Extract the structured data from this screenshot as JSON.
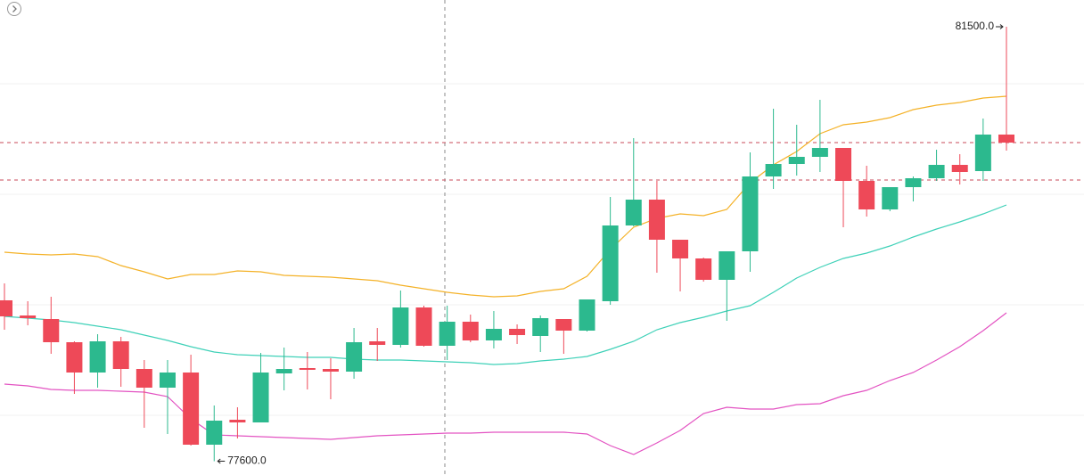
{
  "chart_data": {
    "type": "candlestick",
    "ylim": [
      77476,
      81740
    ],
    "up_color": "#2cb98e",
    "down_color": "#ee4958",
    "open": [
      79044,
      78908,
      78876,
      78668,
      78396,
      78676,
      78428,
      78260,
      78396,
      77748,
      77972,
      77948,
      78388,
      78436,
      78428,
      78404,
      78676,
      78644,
      78980,
      78636,
      78852,
      78684,
      78788,
      78724,
      78876,
      78772,
      79036,
      79716,
      79948,
      79588,
      79420,
      79228,
      79484,
      80156,
      80268,
      80332,
      80412,
      80116,
      79860,
      80060,
      80140,
      80260,
      80204,
      80532
    ],
    "high": [
      79196,
      79036,
      79076,
      78676,
      78740,
      78716,
      78508,
      78508,
      78556,
      78100,
      78084,
      78572,
      78620,
      78580,
      78524,
      78796,
      78796,
      79132,
      78996,
      78996,
      78916,
      78948,
      78828,
      78908,
      78876,
      79052,
      79972,
      80500,
      80116,
      79588,
      79428,
      79484,
      80372,
      80764,
      80620,
      80844,
      80412,
      80252,
      80060,
      80156,
      80396,
      80356,
      80676,
      81500
    ],
    "low": [
      78780,
      78820,
      78564,
      78204,
      78260,
      78268,
      77900,
      77844,
      77740,
      77600,
      77804,
      77948,
      78236,
      78244,
      78156,
      78340,
      78500,
      78620,
      78628,
      78508,
      78668,
      78612,
      78652,
      78580,
      78564,
      78764,
      79004,
      79708,
      79292,
      79124,
      79212,
      78860,
      79300,
      80044,
      80164,
      80196,
      79700,
      79796,
      79844,
      79932,
      80116,
      80084,
      80116,
      80388
    ],
    "close": [
      78900,
      78884,
      78668,
      78396,
      78676,
      78428,
      78260,
      78396,
      77748,
      77964,
      77948,
      78396,
      78428,
      78420,
      78404,
      78668,
      78644,
      78980,
      78636,
      78852,
      78684,
      78788,
      78732,
      78884,
      78772,
      79052,
      79716,
      79948,
      79588,
      79420,
      79228,
      79484,
      80156,
      80268,
      80332,
      80412,
      80116,
      79860,
      80060,
      80140,
      80260,
      80196,
      80532,
      80460
    ],
    "bands": {
      "upper": {
        "color": "#f4b228",
        "values": [
          79476,
          79460,
          79452,
          79460,
          79436,
          79356,
          79300,
          79236,
          79276,
          79276,
          79308,
          79300,
          79268,
          79260,
          79252,
          79236,
          79220,
          79180,
          79148,
          79116,
          79092,
          79076,
          79084,
          79124,
          79148,
          79260,
          79500,
          79700,
          79780,
          79820,
          79804,
          79860,
          80100,
          80260,
          80380,
          80540,
          80620,
          80644,
          80684,
          80756,
          80796,
          80820,
          80860,
          80876
        ]
      },
      "middle": {
        "color": "#3fd1b8",
        "values": [
          78900,
          78884,
          78868,
          78844,
          78812,
          78780,
          78732,
          78684,
          78628,
          78580,
          78556,
          78548,
          78540,
          78532,
          78532,
          78516,
          78508,
          78508,
          78500,
          78492,
          78484,
          78468,
          78476,
          78500,
          78516,
          78540,
          78604,
          78676,
          78780,
          78844,
          78892,
          78948,
          78996,
          79116,
          79244,
          79340,
          79420,
          79468,
          79532,
          79612,
          79684,
          79748,
          79820,
          79900
        ]
      },
      "lower": {
        "color": "#e353c2",
        "values": [
          78292,
          78276,
          78244,
          78236,
          78236,
          78228,
          78220,
          78180,
          77980,
          77836,
          77828,
          77820,
          77812,
          77804,
          77796,
          77812,
          77828,
          77836,
          77844,
          77852,
          77852,
          77860,
          77860,
          77860,
          77860,
          77844,
          77740,
          77660,
          77764,
          77876,
          78028,
          78084,
          78068,
          78068,
          78108,
          78116,
          78188,
          78236,
          78324,
          78396,
          78508,
          78628,
          78772,
          78932
        ]
      }
    },
    "annotations": [
      {
        "value": 81500,
        "label": "81500.0"
      },
      {
        "value": 77600,
        "label": "77600.0"
      }
    ]
  }
}
